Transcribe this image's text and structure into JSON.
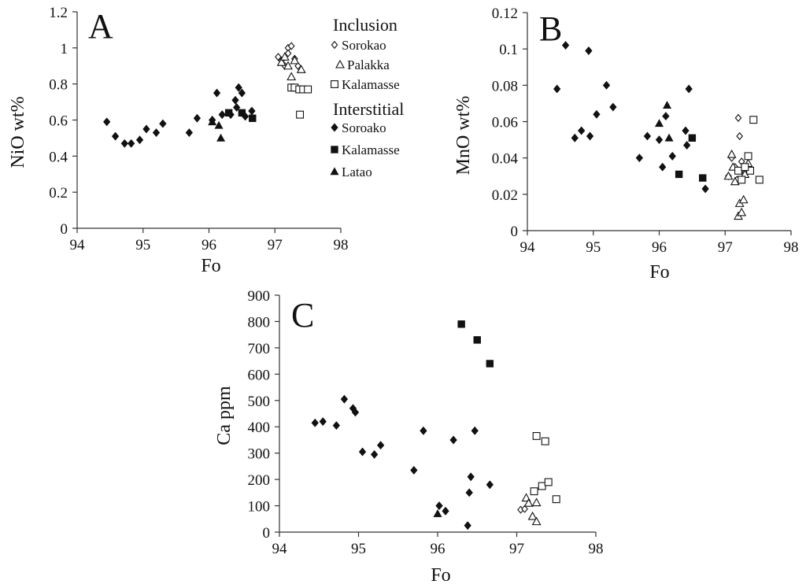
{
  "chart_data": [
    {
      "type": "scatter",
      "panel_label": "A",
      "title": "",
      "xlabel": "Fo",
      "ylabel": "NiO wt%",
      "xlim": [
        94,
        98
      ],
      "ylim": [
        0,
        1.2
      ],
      "xticks": [
        "94",
        "95",
        "96",
        "97",
        "98"
      ],
      "yticks": [
        "0",
        "0.2",
        "0.4",
        "0.6",
        "0.8",
        "1",
        "1.2"
      ],
      "legend": {
        "position": "top-right",
        "groups": [
          {
            "heading": "Inclusion",
            "entries": [
              {
                "name": "Sorokao",
                "marker": "diamond-open"
              },
              {
                "name": "Palakka",
                "marker": "triangle-open"
              },
              {
                "name": "Kalamasse",
                "marker": "square-open"
              }
            ]
          },
          {
            "heading": "Interstitial",
            "entries": [
              {
                "name": "Soroako",
                "marker": "diamond-filled"
              },
              {
                "name": "Kalamasse",
                "marker": "square-filled"
              },
              {
                "name": "Latao",
                "marker": "triangle-filled"
              }
            ]
          }
        ]
      },
      "series": [
        {
          "name": "Inclusion Sorokao",
          "marker": "diamond-open",
          "points": [
            [
              97.05,
              0.95
            ],
            [
              97.1,
              0.93
            ],
            [
              97.15,
              0.9
            ],
            [
              97.2,
              1.0
            ],
            [
              97.25,
              1.01
            ],
            [
              97.2,
              0.97
            ],
            [
              97.3,
              0.94
            ],
            [
              97.35,
              0.9
            ]
          ]
        },
        {
          "name": "Inclusion Palakka",
          "marker": "triangle-open",
          "points": [
            [
              97.1,
              0.92
            ],
            [
              97.15,
              0.95
            ],
            [
              97.2,
              0.9
            ],
            [
              97.25,
              0.84
            ],
            [
              97.3,
              0.93
            ],
            [
              97.4,
              0.88
            ]
          ]
        },
        {
          "name": "Inclusion Kalamasse",
          "marker": "square-open",
          "points": [
            [
              97.25,
              0.78
            ],
            [
              97.3,
              0.78
            ],
            [
              97.37,
              0.77
            ],
            [
              97.43,
              0.77
            ],
            [
              97.5,
              0.77
            ],
            [
              97.38,
              0.63
            ]
          ]
        },
        {
          "name": "Interstitial Soroako",
          "marker": "diamond-filled",
          "points": [
            [
              94.45,
              0.59
            ],
            [
              94.58,
              0.51
            ],
            [
              94.72,
              0.47
            ],
            [
              94.82,
              0.47
            ],
            [
              94.95,
              0.49
            ],
            [
              95.05,
              0.55
            ],
            [
              95.2,
              0.53
            ],
            [
              95.3,
              0.58
            ],
            [
              95.7,
              0.53
            ],
            [
              95.82,
              0.61
            ],
            [
              96.05,
              0.6
            ],
            [
              96.12,
              0.75
            ],
            [
              96.2,
              0.63
            ],
            [
              96.33,
              0.63
            ],
            [
              96.4,
              0.71
            ],
            [
              96.45,
              0.78
            ],
            [
              96.5,
              0.75
            ],
            [
              96.42,
              0.67
            ],
            [
              96.55,
              0.62
            ],
            [
              96.65,
              0.65
            ]
          ]
        },
        {
          "name": "Interstitial Kalamasse",
          "marker": "square-filled",
          "points": [
            [
              96.3,
              0.64
            ],
            [
              96.5,
              0.64
            ],
            [
              96.66,
              0.61
            ]
          ]
        },
        {
          "name": "Interstitial Latao",
          "marker": "triangle-filled",
          "points": [
            [
              96.05,
              0.59
            ],
            [
              96.15,
              0.57
            ],
            [
              96.18,
              0.5
            ]
          ]
        }
      ]
    },
    {
      "type": "scatter",
      "panel_label": "B",
      "title": "",
      "xlabel": "Fo",
      "ylabel": "MnO wt%",
      "xlim": [
        94,
        98
      ],
      "ylim": [
        0,
        0.12
      ],
      "xticks": [
        "94",
        "95",
        "96",
        "97",
        "98"
      ],
      "yticks": [
        "0",
        "0.02",
        "0.04",
        "0.06",
        "0.08",
        "0.1",
        "0.12"
      ],
      "series": [
        {
          "name": "Inclusion Sorokao",
          "marker": "diamond-open",
          "points": [
            [
              97.05,
              0.03
            ],
            [
              97.1,
              0.04
            ],
            [
              97.15,
              0.035
            ],
            [
              97.2,
              0.062
            ],
            [
              97.22,
              0.052
            ],
            [
              97.25,
              0.038
            ],
            [
              97.3,
              0.032
            ],
            [
              97.35,
              0.036
            ],
            [
              97.18,
              0.028
            ]
          ]
        },
        {
          "name": "Inclusion Palakka",
          "marker": "triangle-open",
          "points": [
            [
              97.1,
              0.042
            ],
            [
              97.12,
              0.035
            ],
            [
              97.15,
              0.027
            ],
            [
              97.2,
              0.008
            ],
            [
              97.25,
              0.01
            ],
            [
              97.22,
              0.015
            ],
            [
              97.28,
              0.017
            ],
            [
              97.3,
              0.031
            ],
            [
              97.35,
              0.037
            ],
            [
              97.05,
              0.03
            ]
          ]
        },
        {
          "name": "Inclusion Kalamasse",
          "marker": "square-open",
          "points": [
            [
              97.2,
              0.033
            ],
            [
              97.25,
              0.028
            ],
            [
              97.35,
              0.041
            ],
            [
              97.38,
              0.033
            ],
            [
              97.43,
              0.061
            ],
            [
              97.52,
              0.028
            ],
            [
              97.3,
              0.035
            ]
          ]
        },
        {
          "name": "Interstitial Soroako",
          "marker": "diamond-filled",
          "points": [
            [
              94.45,
              0.078
            ],
            [
              94.58,
              0.102
            ],
            [
              94.72,
              0.051
            ],
            [
              94.82,
              0.055
            ],
            [
              94.95,
              0.052
            ],
            [
              94.93,
              0.099
            ],
            [
              95.05,
              0.064
            ],
            [
              95.2,
              0.08
            ],
            [
              95.3,
              0.068
            ],
            [
              95.7,
              0.04
            ],
            [
              95.82,
              0.052
            ],
            [
              96.0,
              0.05
            ],
            [
              96.05,
              0.035
            ],
            [
              96.1,
              0.063
            ],
            [
              96.2,
              0.041
            ],
            [
              96.4,
              0.055
            ],
            [
              96.42,
              0.047
            ],
            [
              96.45,
              0.078
            ],
            [
              96.7,
              0.023
            ]
          ]
        },
        {
          "name": "Interstitial Kalamasse",
          "marker": "square-filled",
          "points": [
            [
              96.3,
              0.031
            ],
            [
              96.5,
              0.051
            ],
            [
              96.66,
              0.029
            ]
          ]
        },
        {
          "name": "Interstitial Latao",
          "marker": "triangle-filled",
          "points": [
            [
              96.0,
              0.059
            ],
            [
              96.12,
              0.069
            ],
            [
              96.15,
              0.051
            ]
          ]
        }
      ]
    },
    {
      "type": "scatter",
      "panel_label": "C",
      "title": "",
      "xlabel": "Fo",
      "ylabel": "Ca ppm",
      "xlim": [
        94,
        98
      ],
      "ylim": [
        0,
        900
      ],
      "xticks": [
        "94",
        "95",
        "96",
        "97",
        "98"
      ],
      "yticks": [
        "0",
        "100",
        "200",
        "300",
        "400",
        "500",
        "600",
        "700",
        "800",
        "900"
      ],
      "series": [
        {
          "name": "Inclusion Sorokao",
          "marker": "diamond-open",
          "points": [
            [
              97.05,
              85
            ],
            [
              97.1,
              88
            ]
          ]
        },
        {
          "name": "Inclusion Palakka",
          "marker": "triangle-open",
          "points": [
            [
              97.12,
              130
            ],
            [
              97.15,
              110
            ],
            [
              97.2,
              60
            ],
            [
              97.25,
              112
            ],
            [
              97.25,
              40
            ]
          ]
        },
        {
          "name": "Inclusion Kalamasse",
          "marker": "square-open",
          "points": [
            [
              97.22,
              155
            ],
            [
              97.25,
              365
            ],
            [
              97.32,
              175
            ],
            [
              97.36,
              345
            ],
            [
              97.4,
              190
            ],
            [
              97.5,
              125
            ]
          ]
        },
        {
          "name": "Interstitial Soroako",
          "marker": "diamond-filled",
          "points": [
            [
              94.45,
              415
            ],
            [
              94.55,
              420
            ],
            [
              94.72,
              405
            ],
            [
              94.82,
              505
            ],
            [
              94.93,
              470
            ],
            [
              94.96,
              455
            ],
            [
              95.05,
              305
            ],
            [
              95.2,
              295
            ],
            [
              95.28,
              330
            ],
            [
              95.7,
              235
            ],
            [
              95.82,
              385
            ],
            [
              96.02,
              100
            ],
            [
              96.1,
              80
            ],
            [
              96.2,
              350
            ],
            [
              96.38,
              25
            ],
            [
              96.4,
              150
            ],
            [
              96.42,
              210
            ],
            [
              96.47,
              385
            ],
            [
              96.66,
              180
            ]
          ]
        },
        {
          "name": "Interstitial Kalamasse",
          "marker": "square-filled",
          "points": [
            [
              96.3,
              790
            ],
            [
              96.5,
              730
            ],
            [
              96.66,
              640
            ]
          ]
        },
        {
          "name": "Interstitial Latao",
          "marker": "triangle-filled",
          "points": [
            [
              96.0,
              70
            ]
          ]
        }
      ]
    }
  ]
}
